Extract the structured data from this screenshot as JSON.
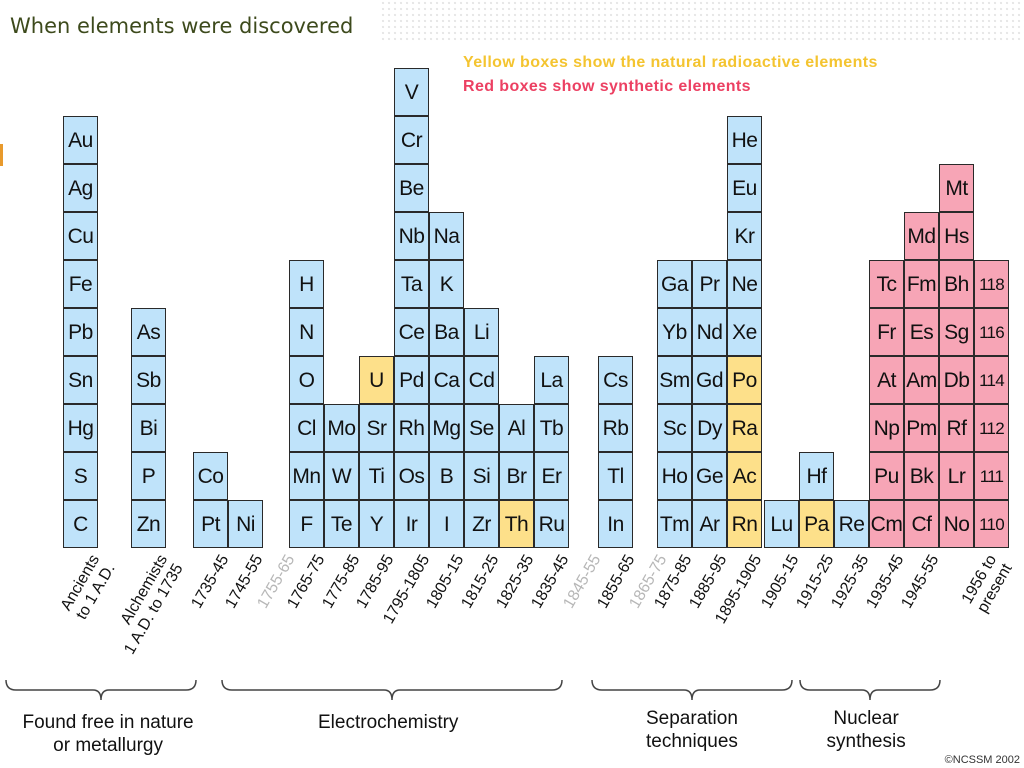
{
  "title": "When elements were discovered",
  "notes": {
    "yellow": "Yellow boxes show the natural radioactive elements",
    "red": "Red boxes show synthetic elements"
  },
  "credit": "©NCSSM 2002",
  "colors": {
    "natural": "#bfe3fa",
    "radioactive": "#fde08a",
    "synthetic": "#f7a5b6",
    "title": "#3d4a1c",
    "note_yellow": "#f4c430",
    "note_red": "#ec4062"
  },
  "chart_data": {
    "type": "bar",
    "title": "When elements were discovered",
    "categories": [
      "Ancients to 1 A.D.",
      "Alchemists 1 A.D. to 1735",
      "1735-45",
      "1745-55",
      "1755-65",
      "1765-75",
      "1775-85",
      "1785-95",
      "1795-1805",
      "1805-15",
      "1815-25",
      "1825-35",
      "1835-45",
      "1845-55",
      "1855-65",
      "1865-75",
      "1875-85",
      "1885-95",
      "1895-1905",
      "1905-15",
      "1915-25",
      "1925-35",
      "1935-45",
      "1945-55",
      "1956 to present"
    ],
    "faded_categories": [
      "1755-65",
      "1845-55",
      "1865-75"
    ],
    "columns": [
      {
        "elements": [
          "C",
          "S",
          "Hg",
          "Sn",
          "Pb",
          "Fe",
          "Cu",
          "Ag",
          "Au"
        ],
        "types": [
          "n",
          "n",
          "n",
          "n",
          "n",
          "n",
          "n",
          "n",
          "n"
        ]
      },
      {
        "elements": [
          "Zn",
          "P",
          "Bi",
          "Sb",
          "As"
        ],
        "types": [
          "n",
          "n",
          "n",
          "n",
          "n"
        ]
      },
      {
        "elements": [
          "Pt",
          "Co"
        ],
        "types": [
          "n",
          "n"
        ]
      },
      {
        "elements": [
          "Ni"
        ],
        "types": [
          "n"
        ]
      },
      {
        "elements": [],
        "types": []
      },
      {
        "elements": [
          "F",
          "Mn",
          "Cl",
          "O",
          "N",
          "H"
        ],
        "types": [
          "n",
          "n",
          "n",
          "n",
          "n",
          "n"
        ]
      },
      {
        "elements": [
          "Te",
          "W",
          "Mo"
        ],
        "types": [
          "n",
          "n",
          "n"
        ]
      },
      {
        "elements": [
          "Y",
          "Ti",
          "Sr",
          "U"
        ],
        "types": [
          "n",
          "n",
          "n",
          "r"
        ]
      },
      {
        "elements": [
          "Ir",
          "Os",
          "Rh",
          "Pd",
          "Ce",
          "Ta",
          "Nb",
          "Be",
          "Cr",
          "V"
        ],
        "types": [
          "n",
          "n",
          "n",
          "n",
          "n",
          "n",
          "n",
          "n",
          "n",
          "n"
        ]
      },
      {
        "elements": [
          "I",
          "B",
          "Mg",
          "Ca",
          "Ba",
          "K",
          "Na"
        ],
        "types": [
          "n",
          "n",
          "n",
          "n",
          "n",
          "n",
          "n"
        ]
      },
      {
        "elements": [
          "Zr",
          "Si",
          "Se",
          "Cd",
          "Li"
        ],
        "types": [
          "n",
          "n",
          "n",
          "n",
          "n"
        ]
      },
      {
        "elements": [
          "Th",
          "Br",
          "Al"
        ],
        "types": [
          "r",
          "n",
          "n"
        ]
      },
      {
        "elements": [
          "Ru",
          "Er",
          "Tb",
          "La"
        ],
        "types": [
          "n",
          "n",
          "n",
          "n"
        ]
      },
      {
        "elements": [],
        "types": []
      },
      {
        "elements": [
          "In",
          "Tl",
          "Rb",
          "Cs"
        ],
        "types": [
          "n",
          "n",
          "n",
          "n"
        ]
      },
      {
        "elements": [],
        "types": []
      },
      {
        "elements": [
          "Tm",
          "Ho",
          "Sc",
          "Sm",
          "Yb",
          "Ga"
        ],
        "types": [
          "n",
          "n",
          "n",
          "n",
          "n",
          "n"
        ]
      },
      {
        "elements": [
          "Ar",
          "Ge",
          "Dy",
          "Gd",
          "Nd",
          "Pr"
        ],
        "types": [
          "n",
          "n",
          "n",
          "n",
          "n",
          "n"
        ]
      },
      {
        "elements": [
          "Rn",
          "Ac",
          "Ra",
          "Po",
          "Xe",
          "Ne",
          "Kr",
          "Eu",
          "He"
        ],
        "types": [
          "r",
          "r",
          "r",
          "r",
          "n",
          "n",
          "n",
          "n",
          "n"
        ]
      },
      {
        "elements": [
          "Lu"
        ],
        "types": [
          "n"
        ]
      },
      {
        "elements": [
          "Pa",
          "Hf"
        ],
        "types": [
          "r",
          "n"
        ]
      },
      {
        "elements": [
          "Re"
        ],
        "types": [
          "n"
        ]
      },
      {
        "elements": [
          "Cm",
          "Pu",
          "Np",
          "At",
          "Fr",
          "Tc"
        ],
        "types": [
          "s",
          "s",
          "s",
          "s",
          "s",
          "s"
        ]
      },
      {
        "elements": [
          "Cf",
          "Bk",
          "Pm",
          "Am",
          "Es",
          "Fm",
          "Md"
        ],
        "types": [
          "s",
          "s",
          "s",
          "s",
          "s",
          "s",
          "s"
        ]
      },
      {
        "elements": [
          "No",
          "Lr",
          "Rf",
          "Db",
          "Sg",
          "Bh",
          "Hs",
          "Mt"
        ],
        "types": [
          "s",
          "s",
          "s",
          "s",
          "s",
          "s",
          "s",
          "s"
        ]
      },
      {
        "elements": [
          "110",
          "111",
          "112",
          "114",
          "116",
          "118"
        ],
        "types": [
          "s",
          "s",
          "s",
          "s",
          "s",
          "s"
        ]
      }
    ],
    "period_labels": [
      {
        "lines": [
          "Ancients",
          "to 1 A.D."
        ],
        "faded": false
      },
      {
        "lines": [
          "Alchemists",
          "1 A.D. to 1735"
        ],
        "faded": false
      },
      {
        "lines": [
          "1735-45"
        ],
        "faded": false
      },
      {
        "lines": [
          "1745-55"
        ],
        "faded": false
      },
      {
        "lines": [
          "1755-65"
        ],
        "faded": true
      },
      {
        "lines": [
          "1765-75"
        ],
        "faded": false
      },
      {
        "lines": [
          "1775-85"
        ],
        "faded": false
      },
      {
        "lines": [
          "1785-95"
        ],
        "faded": false
      },
      {
        "lines": [
          "1795-1805"
        ],
        "faded": false
      },
      {
        "lines": [
          "1805-15"
        ],
        "faded": false
      },
      {
        "lines": [
          "1815-25"
        ],
        "faded": false
      },
      {
        "lines": [
          "1825-35"
        ],
        "faded": false
      },
      {
        "lines": [
          "1835-45"
        ],
        "faded": false
      },
      {
        "lines": [
          "1845-55"
        ],
        "faded": true
      },
      {
        "lines": [
          "1855-65"
        ],
        "faded": false
      },
      {
        "lines": [
          "1865-75"
        ],
        "faded": true
      },
      {
        "lines": [
          "1875-85"
        ],
        "faded": false
      },
      {
        "lines": [
          "1885-95"
        ],
        "faded": false
      },
      {
        "lines": [
          "1895-1905"
        ],
        "faded": false
      },
      {
        "lines": [
          "1905-15"
        ],
        "faded": false
      },
      {
        "lines": [
          "1915-25"
        ],
        "faded": false
      },
      {
        "lines": [
          "1925-35"
        ],
        "faded": false
      },
      {
        "lines": [
          "1935-45"
        ],
        "faded": false
      },
      {
        "lines": [
          "1945-55"
        ],
        "faded": false
      },
      {
        "lines": [
          "1956 to",
          "present"
        ],
        "faded": false
      }
    ],
    "groups": [
      {
        "lines": [
          "Found free in nature",
          "or metallurgy"
        ]
      },
      {
        "lines": [
          "Electrochemistry"
        ]
      },
      {
        "lines": [
          "Separation",
          "techniques"
        ]
      },
      {
        "lines": [
          "Nuclear",
          "synthesis"
        ]
      }
    ]
  }
}
